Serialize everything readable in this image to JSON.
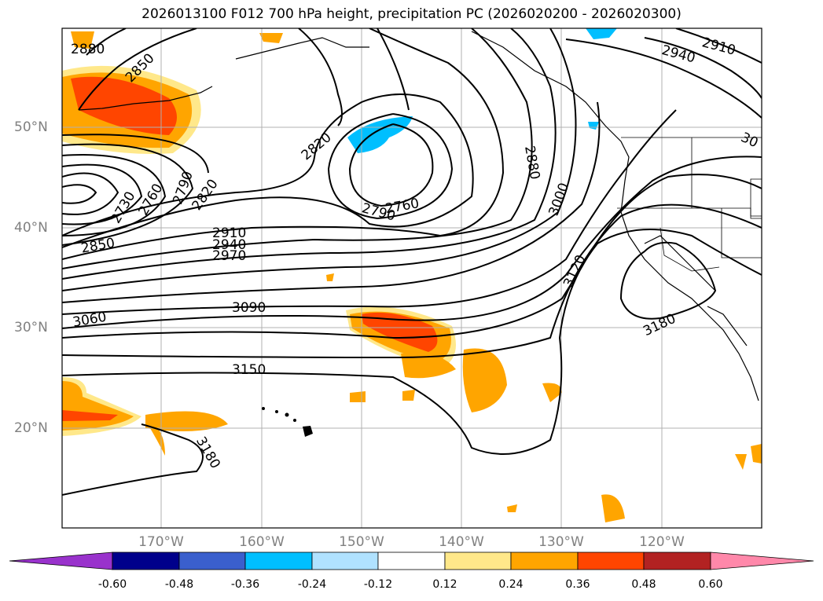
{
  "title": "2026013100 F012 700 hPa height, precipitation PC (2026020200 - 2026020300)",
  "axes": {
    "lat_labels": [
      "50°N",
      "40°N",
      "30°N",
      "20°N"
    ],
    "lon_labels": [
      "170°W",
      "160°W",
      "150°W",
      "140°W",
      "130°W",
      "120°W"
    ]
  },
  "contour_labels": [
    "2880",
    "2850",
    "2820",
    "2790",
    "2760",
    "2730",
    "2850",
    "2910",
    "2940",
    "2970",
    "3060",
    "3090",
    "3150",
    "3180",
    "2820",
    "2760",
    "2790",
    "2880",
    "3000",
    "3120",
    "3180",
    "2940",
    "2910",
    "30"
  ],
  "colorbar": {
    "ticks": [
      "-0.60",
      "-0.48",
      "-0.36",
      "-0.24",
      "-0.12",
      "0.12",
      "0.24",
      "0.36",
      "0.48",
      "0.60"
    ],
    "colors": [
      "#9932cc",
      "#00008b",
      "#3a5fcd",
      "#00bfff",
      "#b0e2ff",
      "#ffffff",
      "#ffe88a",
      "#ffa500",
      "#ff4500",
      "#b22222",
      "#ff88aa"
    ]
  }
}
